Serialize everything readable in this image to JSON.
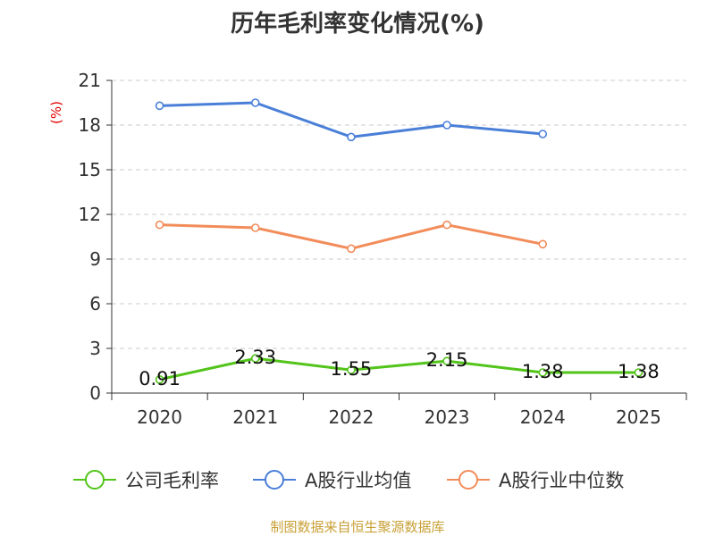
{
  "chart_data": {
    "type": "line",
    "title": "历年毛利率变化情况(%)",
    "ylabel": "(%)",
    "xlabel": "",
    "categories": [
      "2020",
      "2021",
      "2022",
      "2023",
      "2024",
      "2025"
    ],
    "ylim": [
      0,
      21
    ],
    "yticks": [
      0,
      3,
      6,
      9,
      12,
      15,
      18,
      21
    ],
    "grid": true,
    "legend_position": "bottom",
    "series": [
      {
        "name": "公司毛利率",
        "color": "#52c41a",
        "values": [
          0.91,
          2.33,
          1.55,
          2.15,
          1.38,
          1.38
        ],
        "labels": [
          "0.91",
          "2.33",
          "1.55",
          "2.15",
          "1.38",
          "1.38"
        ],
        "show_labels": true
      },
      {
        "name": "A股行业均值",
        "color": "#4a7fd8",
        "values": [
          19.3,
          19.5,
          17.2,
          18.0,
          17.4,
          null
        ],
        "show_labels": false
      },
      {
        "name": "A股行业中位数",
        "color": "#f28c5a",
        "values": [
          11.3,
          11.1,
          9.7,
          11.3,
          10.0,
          null
        ],
        "show_labels": false
      }
    ]
  },
  "footer": {
    "source": "制图数据来自恒生聚源数据库"
  }
}
